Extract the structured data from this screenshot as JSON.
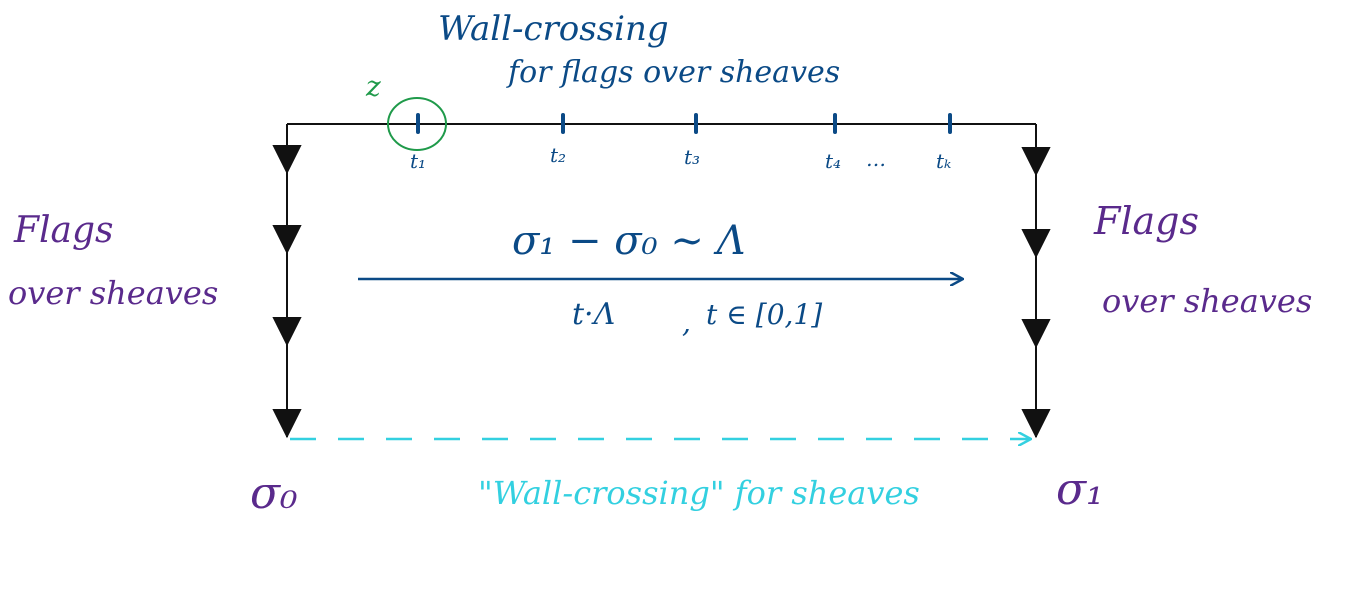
{
  "colors": {
    "frame": "#111111",
    "blue": "#0b4a86",
    "purple": "#5a2a8c",
    "cyan": "#33d0e0",
    "green": "#1f9a4a"
  },
  "top": {
    "title_line1": "Wall-crossing",
    "title_line2": "for flags over sheaves",
    "circle_label": "z",
    "tick_labels": [
      "t₁",
      "t₂",
      "t₃",
      "t₄",
      "…",
      "tₖ"
    ]
  },
  "left": {
    "line1": "Flags",
    "line2": "over sheaves",
    "corner": "σ₀"
  },
  "right": {
    "line1": "Flags",
    "line2": "over sheaves",
    "corner": "σ₁"
  },
  "middle": {
    "equation": "σ₁ − σ₀ ∼ Λ",
    "param_a": "t·Λ",
    "param_sep": ",",
    "param_b": "t ∈ [0,1]"
  },
  "bottom": {
    "label": "\"Wall-crossing\" for sheaves"
  }
}
